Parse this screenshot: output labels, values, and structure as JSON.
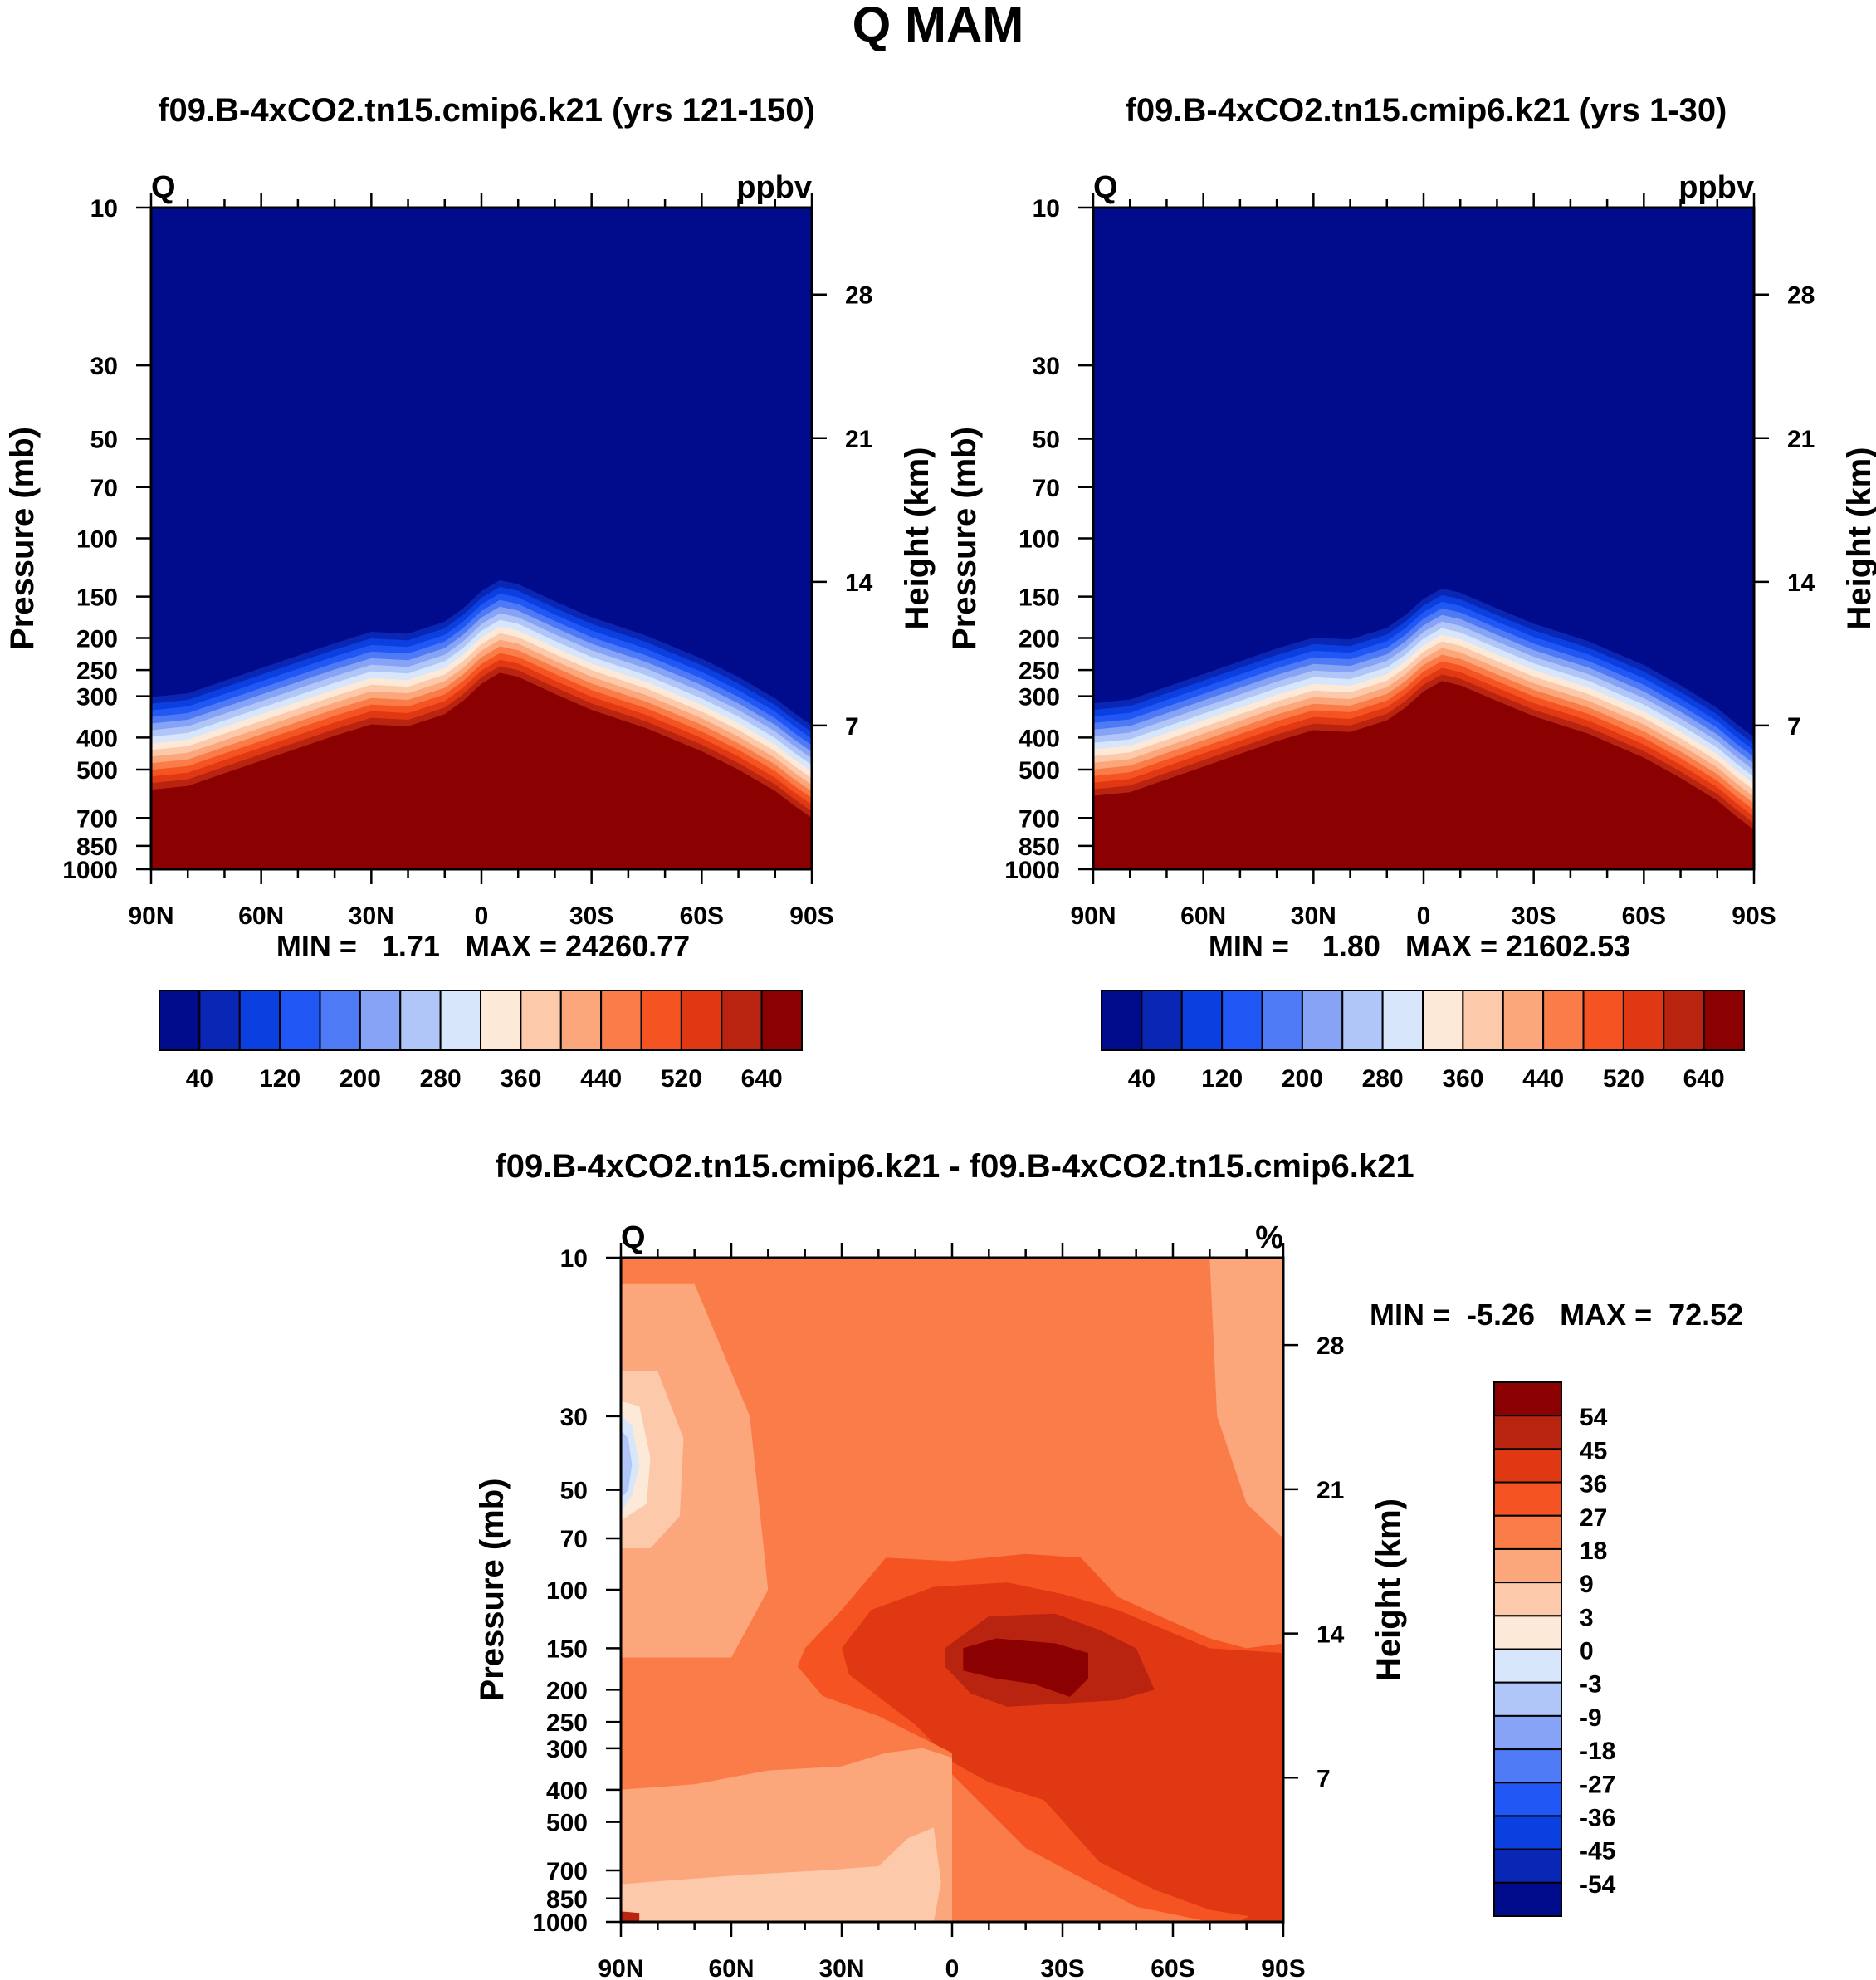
{
  "figure": {
    "title": "Q MAM"
  },
  "colors": {
    "blue_red": [
      "#000c8c",
      "#0a26b4",
      "#0b3fe0",
      "#2157f4",
      "#4f7af6",
      "#86a3f5",
      "#b0c6f8",
      "#d7e6fb",
      "#fde9d7",
      "#fcc9ab",
      "#fca77b",
      "#fa7c49",
      "#f55422",
      "#e13814",
      "#b82410",
      "#8b0000"
    ],
    "diff_red_to_blue": [
      "#8b0000",
      "#b82410",
      "#e13814",
      "#f55422",
      "#fa7c49",
      "#fca77b",
      "#fcc9ab",
      "#fde9d7",
      "#d7e6fb",
      "#b0c6f8",
      "#86a3f5",
      "#4f7af6",
      "#2157f4",
      "#0b3fe0",
      "#0a26b4",
      "#000c8c"
    ],
    "diff_fill": {
      "band_a": "#fca77b",
      "band_b": "#fa7c49",
      "band_c": "#f55422",
      "band_d": "#e13814",
      "band_e": "#b82410",
      "band_f": "#8b0000",
      "band_g": "#fcc9ab",
      "band_h": "#fde9d7",
      "band_i": "#d7e6fb",
      "band_j": "#b0c6f8"
    }
  },
  "chart_data": [
    {
      "type": "heatmap",
      "title": "f09.B-4xCO2.tn15.cmip6.k21 (yrs 121-150)",
      "variable": "Q",
      "units": "ppbv",
      "xlabel": "",
      "ylabel": "Pressure (mb)",
      "ylabel_right": "Height (km)",
      "x_ticks": [
        "90N",
        "60N",
        "30N",
        "0",
        "30S",
        "60S",
        "90S"
      ],
      "x_range": [
        90,
        -90
      ],
      "y_ticks": [
        "10",
        "30",
        "50",
        "70",
        "100",
        "150",
        "200",
        "250",
        "300",
        "400",
        "500",
        "700",
        "850",
        "1000"
      ],
      "y_range_mb": [
        10,
        1000
      ],
      "y_right_ticks": [
        "28",
        "21",
        "14",
        "7"
      ],
      "min_max_text": "MIN =   1.71   MAX = 24260.77",
      "min": 1.71,
      "max": 24260.77,
      "colorbar_orientation": "horizontal",
      "colorbar_labels": [
        "40",
        "120",
        "200",
        "280",
        "360",
        "440",
        "520",
        "640"
      ],
      "levels": [
        0,
        40,
        80,
        120,
        160,
        200,
        240,
        280,
        320,
        360,
        400,
        440,
        480,
        520,
        580,
        640
      ],
      "surface_pressure_profile": {
        "lat": [
          90,
          80,
          60,
          40,
          30,
          20,
          10,
          5,
          0,
          -5,
          -10,
          -20,
          -30,
          -45,
          -60,
          -70,
          -80,
          -85,
          -90
        ],
        "pressure_mb": [
          575,
          560,
          470,
          395,
          365,
          370,
          340,
          310,
          275,
          255,
          262,
          295,
          330,
          375,
          440,
          500,
          580,
          640,
          700
        ]
      },
      "transition_depth_decades": 0.3
    },
    {
      "type": "heatmap",
      "title": "f09.B-4xCO2.tn15.cmip6.k21 (yrs 1-30)",
      "variable": "Q",
      "units": "ppbv",
      "xlabel": "",
      "ylabel": "Pressure (mb)",
      "ylabel_right": "Height (km)",
      "x_ticks": [
        "90N",
        "60N",
        "30N",
        "0",
        "30S",
        "60S",
        "90S"
      ],
      "x_range": [
        90,
        -90
      ],
      "y_ticks": [
        "10",
        "30",
        "50",
        "70",
        "100",
        "150",
        "200",
        "250",
        "300",
        "400",
        "500",
        "700",
        "850",
        "1000"
      ],
      "y_range_mb": [
        10,
        1000
      ],
      "y_right_ticks": [
        "28",
        "21",
        "14",
        "7"
      ],
      "min_max_text": "MIN =    1.80   MAX = 21602.53",
      "min": 1.8,
      "max": 21602.53,
      "colorbar_orientation": "horizontal",
      "colorbar_labels": [
        "40",
        "120",
        "200",
        "280",
        "360",
        "440",
        "520",
        "640"
      ],
      "levels": [
        0,
        40,
        80,
        120,
        160,
        200,
        240,
        280,
        320,
        360,
        400,
        440,
        480,
        520,
        580,
        640
      ],
      "surface_pressure_profile": {
        "lat": [
          90,
          80,
          60,
          40,
          30,
          20,
          10,
          5,
          0,
          -5,
          -10,
          -20,
          -30,
          -45,
          -60,
          -70,
          -80,
          -85,
          -90
        ],
        "pressure_mb": [
          600,
          585,
          490,
          410,
          380,
          385,
          355,
          325,
          290,
          270,
          278,
          310,
          345,
          390,
          460,
          530,
          620,
          690,
          760
        ]
      },
      "transition_depth_decades": 0.3
    },
    {
      "type": "heatmap",
      "title": "f09.B-4xCO2.tn15.cmip6.k21 - f09.B-4xCO2.tn15.cmip6.k21",
      "variable": "Q",
      "units": "%",
      "xlabel": "",
      "ylabel": "Pressure (mb)",
      "ylabel_right": "Height (km)",
      "x_ticks": [
        "90N",
        "60N",
        "30N",
        "0",
        "30S",
        "60S",
        "90S"
      ],
      "x_range": [
        90,
        -90
      ],
      "y_ticks": [
        "10",
        "30",
        "50",
        "70",
        "100",
        "150",
        "200",
        "250",
        "300",
        "400",
        "500",
        "700",
        "850",
        "1000"
      ],
      "y_range_mb": [
        10,
        1000
      ],
      "y_right_ticks": [
        "28",
        "21",
        "14",
        "7"
      ],
      "min_max_text": "MIN =  -5.26   MAX =  72.52",
      "min": -5.26,
      "max": 72.52,
      "colorbar_orientation": "vertical",
      "colorbar_labels": [
        "54",
        "45",
        "36",
        "27",
        "18",
        "9",
        "3",
        "0",
        "-3",
        "-9",
        "-18",
        "-27",
        "-36",
        "-45",
        "-54"
      ],
      "regions": [
        {
          "band": "band_a",
          "lat": [
            90,
            70,
            55,
            50,
            60,
            90
          ],
          "p": [
            12,
            12,
            30,
            100,
            160,
            160
          ]
        },
        {
          "band": "band_a",
          "lat": [
            -70,
            -78,
            -90,
            -90,
            -80,
            -72
          ],
          "p": [
            10,
            10,
            10,
            70,
            55,
            30
          ]
        },
        {
          "band": "band_g",
          "lat": [
            90,
            80,
            73,
            74,
            82,
            90
          ],
          "p": [
            22,
            22,
            35,
            60,
            75,
            75
          ]
        },
        {
          "band": "band_h",
          "lat": [
            90,
            85,
            82,
            83,
            90
          ],
          "p": [
            27,
            28,
            40,
            55,
            62
          ]
        },
        {
          "band": "band_i",
          "lat": [
            90,
            87,
            85,
            87,
            90
          ],
          "p": [
            30,
            32,
            42,
            52,
            58
          ]
        },
        {
          "band": "band_j",
          "lat": [
            90,
            88,
            87,
            88,
            90
          ],
          "p": [
            33,
            35,
            42,
            50,
            53
          ]
        },
        {
          "band": "band_c",
          "lat": [
            40,
            30,
            18,
            0,
            -20,
            -35,
            -45,
            -60,
            -70,
            -80,
            -90,
            -90,
            -70,
            -50,
            -20,
            0,
            20,
            35,
            42
          ],
          "p": [
            150,
            115,
            80,
            82,
            78,
            80,
            105,
            125,
            140,
            150,
            145,
            1000,
            1000,
            900,
            600,
            360,
            240,
            210,
            170
          ]
        },
        {
          "band": "band_d",
          "lat": [
            30,
            22,
            5,
            -15,
            -30,
            -45,
            -60,
            -70,
            -90,
            -90,
            -70,
            -55,
            -40,
            -25,
            -10,
            0,
            10,
            20,
            28
          ],
          "p": [
            150,
            115,
            98,
            95,
            103,
            115,
            135,
            150,
            155,
            1000,
            920,
            800,
            660,
            430,
            380,
            330,
            255,
            210,
            180
          ]
        },
        {
          "band": "band_e",
          "lat": [
            2,
            -10,
            -28,
            -40,
            -50,
            -55,
            -45,
            -30,
            -15,
            -5,
            2
          ],
          "p": [
            150,
            120,
            118,
            132,
            150,
            200,
            215,
            220,
            225,
            205,
            170
          ]
        },
        {
          "band": "band_f",
          "lat": [
            -3,
            -12,
            -28,
            -37,
            -37,
            -32,
            -22,
            -12,
            -3
          ],
          "p": [
            150,
            140,
            145,
            155,
            185,
            210,
            192,
            185,
            175
          ]
        },
        {
          "band": "band_b",
          "lat": [
            90,
            60,
            40,
            20,
            0,
            0,
            20,
            50,
            90
          ],
          "p": [
            160,
            160,
            200,
            240,
            310,
            340,
            290,
            270,
            250
          ]
        },
        {
          "band": "band_a",
          "lat": [
            90,
            70,
            50,
            30,
            18,
            8,
            0,
            0,
            8,
            20,
            40,
            60,
            80,
            90
          ],
          "p": [
            400,
            385,
            350,
            340,
            310,
            300,
            320,
            1000,
            1000,
            1000,
            1000,
            1000,
            1000,
            1000
          ]
        },
        {
          "band": "band_g",
          "lat": [
            90,
            70,
            55,
            35,
            20,
            12,
            5,
            3,
            5,
            20,
            40,
            60,
            80,
            90
          ],
          "p": [
            770,
            740,
            720,
            700,
            680,
            560,
            520,
            760,
            1000,
            1000,
            1000,
            1000,
            1000,
            1000
          ]
        },
        {
          "band": "band_e",
          "lat": [
            90,
            85,
            85,
            90
          ],
          "p": [
            930,
            940,
            1000,
            1000
          ]
        },
        {
          "band": "band_d",
          "lat": [
            -78,
            -85,
            -90,
            -90,
            -80
          ],
          "p": [
            1000,
            900,
            760,
            1000,
            1000
          ]
        }
      ]
    }
  ]
}
